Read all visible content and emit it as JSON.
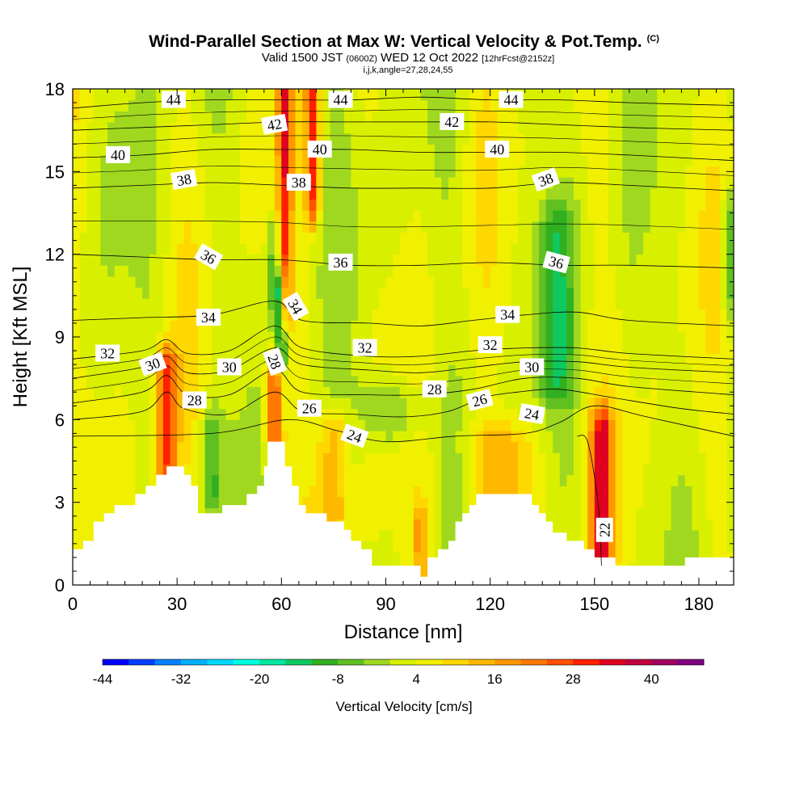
{
  "title": {
    "main": "Wind-Parallel Section at Max W: Vertical Velocity & Pot.Temp.",
    "copyright": "(C)",
    "valid_prefix": "Valid 1500 JST",
    "valid_utc": "(0600Z)",
    "valid_date": "WED 12 Oct 2022",
    "forecast": "[12hrFcst@2152z]",
    "indices": "i,j,k,angle=27,28,24,55"
  },
  "chart_data": {
    "type": "heatmap",
    "xlabel": "Distance [nm]",
    "ylabel": "Height [Kft MSL]",
    "xlim": [
      0,
      190
    ],
    "ylim": [
      0,
      18
    ],
    "x_ticks": [
      0,
      30,
      60,
      90,
      120,
      150,
      180
    ],
    "y_ticks": [
      0,
      3,
      6,
      9,
      12,
      15,
      18
    ],
    "colorbar": {
      "title": "Vertical Velocity [cm/s]",
      "tick_labels": [
        "-44",
        "-32",
        "-20",
        "-8",
        "4",
        "16",
        "28",
        "40"
      ],
      "tick_values": [
        -44,
        -32,
        -20,
        -8,
        4,
        16,
        28,
        40
      ],
      "range": [
        -44,
        48
      ],
      "colors": [
        "#0000ff",
        "#0040ff",
        "#0080ff",
        "#00b0ff",
        "#00d8ff",
        "#00ffe0",
        "#00e8a0",
        "#10c860",
        "#30b020",
        "#60c020",
        "#a0d820",
        "#d8f000",
        "#f0f000",
        "#ffd800",
        "#ffb800",
        "#ff9800",
        "#ff7800",
        "#ff5000",
        "#ff2000",
        "#e00020",
        "#c00040",
        "#a00060",
        "#800080"
      ]
    },
    "terrain": [
      [
        0,
        1.3
      ],
      [
        3,
        1.6
      ],
      [
        6,
        2.3
      ],
      [
        9,
        2.6
      ],
      [
        12,
        2.9
      ],
      [
        18,
        3.3
      ],
      [
        21,
        3.6
      ],
      [
        24,
        4.0
      ],
      [
        27,
        4.3
      ],
      [
        30,
        4.3
      ],
      [
        32,
        4.0
      ],
      [
        34,
        3.6
      ],
      [
        36,
        2.6
      ],
      [
        40,
        2.6
      ],
      [
        43,
        2.9
      ],
      [
        48,
        2.9
      ],
      [
        50,
        3.3
      ],
      [
        53,
        3.6
      ],
      [
        55,
        4.3
      ],
      [
        56,
        5.2
      ],
      [
        60,
        5.2
      ],
      [
        61,
        4.3
      ],
      [
        63,
        3.6
      ],
      [
        65,
        2.9
      ],
      [
        67,
        2.6
      ],
      [
        70,
        2.6
      ],
      [
        73,
        2.3
      ],
      [
        76,
        2.3
      ],
      [
        78,
        2.0
      ],
      [
        80,
        1.6
      ],
      [
        83,
        1.3
      ],
      [
        86,
        0.7
      ],
      [
        90,
        0.7
      ],
      [
        95,
        0.7
      ],
      [
        98,
        0.7
      ],
      [
        100,
        0.3
      ],
      [
        102,
        1.0
      ],
      [
        105,
        1.3
      ],
      [
        108,
        1.6
      ],
      [
        110,
        2.3
      ],
      [
        112,
        2.6
      ],
      [
        114,
        2.9
      ],
      [
        116,
        3.3
      ],
      [
        130,
        3.3
      ],
      [
        132,
        2.9
      ],
      [
        134,
        2.6
      ],
      [
        136,
        2.3
      ],
      [
        138,
        1.9
      ],
      [
        142,
        1.6
      ],
      [
        147,
        1.3
      ],
      [
        150,
        1.0
      ],
      [
        153,
        1.0
      ],
      [
        156,
        0.7
      ],
      [
        170,
        0.7
      ],
      [
        176,
        1.0
      ],
      [
        190,
        1.0
      ]
    ],
    "vertical_velocity_features": [
      {
        "x": 27,
        "ybot": 4.3,
        "ytop": 7.8,
        "w": 6,
        "value": 28
      },
      {
        "x": 58,
        "ybot": 5.2,
        "ytop": 7.5,
        "w": 5,
        "value": 28
      },
      {
        "x": 61,
        "ybot": 10.0,
        "ytop": 18,
        "w": 4,
        "value": 28
      },
      {
        "x": 69,
        "ybot": 14,
        "ytop": 18,
        "w": 4,
        "value": 28
      },
      {
        "x": 152,
        "ybot": 1.2,
        "ytop": 5.5,
        "w": 6,
        "value": 32
      },
      {
        "x": 123,
        "ybot": 3.3,
        "ytop": 5.0,
        "w": 18,
        "value": 16
      },
      {
        "x": 75,
        "ybot": 2.6,
        "ytop": 5.5,
        "w": 8,
        "value": 16
      },
      {
        "x": 100,
        "ybot": 0.5,
        "ytop": 2.0,
        "w": 4,
        "value": 16
      },
      {
        "x": 60,
        "ybot": 8.8,
        "ytop": 10.5,
        "w": 3,
        "value": -22
      },
      {
        "x": 58,
        "ybot": 10.5,
        "ytop": 12.5,
        "w": 3,
        "value": -10
      },
      {
        "x": 139,
        "ybot": 7.5,
        "ytop": 13,
        "w": 10,
        "value": -8
      },
      {
        "x": 190,
        "ybot": 10.5,
        "ytop": 13.5,
        "w": 6,
        "value": -8
      },
      {
        "x": 40,
        "ybot": 3.5,
        "ytop": 5.5,
        "w": 5,
        "value": -8
      },
      {
        "x": 92,
        "ybot": 6.0,
        "ytop": 6.6,
        "w": 20,
        "value": -6
      }
    ],
    "theta_contours": [
      {
        "value": 22,
        "label": "22",
        "label_x": 153,
        "label_y": 2.0,
        "label_rot": -90,
        "pts": [
          [
            152,
            0.7
          ],
          [
            151,
            3.0
          ],
          [
            148,
            5.2
          ],
          [
            145,
            5.4
          ]
        ]
      },
      {
        "value": 24,
        "label": "24",
        "label_x": 81,
        "label_y": 5.4,
        "label_rot": 20,
        "pts": [
          [
            0,
            5.4
          ],
          [
            40,
            5.5
          ],
          [
            62,
            6.0
          ],
          [
            76,
            5.6
          ],
          [
            90,
            5.2
          ],
          [
            110,
            5.4
          ],
          [
            130,
            5.5
          ],
          [
            140,
            5.9
          ],
          [
            150,
            6.5
          ],
          [
            165,
            6.1
          ],
          [
            190,
            5.4
          ]
        ]
      },
      {
        "value": 24,
        "label": "24",
        "label_x": 132,
        "label_y": 6.2,
        "label_rot": 10,
        "pts": []
      },
      {
        "value": 26,
        "label": "26",
        "label_x": 68,
        "label_y": 6.4,
        "label_rot": 0,
        "pts": [
          [
            0,
            6.0
          ],
          [
            20,
            6.3
          ],
          [
            27,
            7.0
          ],
          [
            32,
            6.4
          ],
          [
            45,
            6.2
          ],
          [
            58,
            7.0
          ],
          [
            66,
            6.3
          ],
          [
            80,
            6.2
          ],
          [
            95,
            6.1
          ],
          [
            108,
            6.3
          ],
          [
            118,
            6.8
          ],
          [
            128,
            7.0
          ],
          [
            140,
            7.1
          ],
          [
            155,
            6.8
          ],
          [
            175,
            6.4
          ],
          [
            190,
            6.2
          ]
        ]
      },
      {
        "value": 26,
        "label": "26",
        "label_x": 117,
        "label_y": 6.7,
        "label_rot": -15,
        "pts": []
      },
      {
        "value": 28,
        "label": "28",
        "label_x": 35,
        "label_y": 6.7,
        "label_rot": 0,
        "pts": [
          [
            0,
            6.6
          ],
          [
            20,
            7.0
          ],
          [
            27,
            7.6
          ],
          [
            33,
            6.9
          ],
          [
            45,
            6.9
          ],
          [
            58,
            7.8
          ],
          [
            66,
            7.0
          ],
          [
            85,
            6.9
          ],
          [
            100,
            6.9
          ],
          [
            115,
            7.1
          ],
          [
            130,
            7.5
          ],
          [
            145,
            7.5
          ],
          [
            160,
            7.2
          ],
          [
            190,
            6.9
          ]
        ]
      },
      {
        "value": 28,
        "label": "28",
        "label_x": 104,
        "label_y": 7.1,
        "label_rot": 0,
        "pts": []
      },
      {
        "value": 28,
        "label": "28",
        "label_x": 58,
        "label_y": 8.1,
        "label_rot": 70,
        "pts": []
      },
      {
        "value": 30,
        "label": "30",
        "label_x": 23,
        "label_y": 8.0,
        "label_rot": -20,
        "pts": [
          [
            0,
            7.5
          ],
          [
            20,
            7.9
          ],
          [
            27,
            8.3
          ],
          [
            33,
            7.7
          ],
          [
            45,
            7.8
          ],
          [
            58,
            8.6
          ],
          [
            66,
            8.0
          ],
          [
            85,
            7.8
          ],
          [
            100,
            7.7
          ],
          [
            115,
            7.9
          ],
          [
            130,
            8.1
          ],
          [
            145,
            8.1
          ],
          [
            160,
            7.9
          ],
          [
            190,
            7.7
          ]
        ]
      },
      {
        "value": 30,
        "label": "30",
        "label_x": 45,
        "label_y": 7.9,
        "label_rot": 0,
        "pts": []
      },
      {
        "value": 30,
        "label": "30",
        "label_x": 132,
        "label_y": 7.9,
        "label_rot": 0,
        "pts": []
      },
      {
        "value": 32,
        "label": "32",
        "label_x": 10,
        "label_y": 8.4,
        "label_rot": 0,
        "pts": [
          [
            0,
            8.2
          ],
          [
            20,
            8.5
          ],
          [
            27,
            8.9
          ],
          [
            33,
            8.4
          ],
          [
            45,
            8.5
          ],
          [
            58,
            9.4
          ],
          [
            66,
            8.6
          ],
          [
            85,
            8.3
          ],
          [
            100,
            8.3
          ],
          [
            115,
            8.5
          ],
          [
            130,
            8.6
          ],
          [
            145,
            8.6
          ],
          [
            160,
            8.4
          ],
          [
            190,
            8.2
          ]
        ]
      },
      {
        "value": 32,
        "label": "32",
        "label_x": 84,
        "label_y": 8.6,
        "label_rot": 0,
        "pts": []
      },
      {
        "value": 32,
        "label": "32",
        "label_x": 120,
        "label_y": 8.7,
        "label_rot": 0,
        "pts": []
      },
      {
        "value": 34,
        "label": "34",
        "label_x": 39,
        "label_y": 9.7,
        "label_rot": 0,
        "pts": [
          [
            0,
            9.6
          ],
          [
            20,
            9.7
          ],
          [
            40,
            9.8
          ],
          [
            58,
            10.3
          ],
          [
            66,
            9.6
          ],
          [
            85,
            9.5
          ],
          [
            100,
            9.4
          ],
          [
            115,
            9.6
          ],
          [
            130,
            9.8
          ],
          [
            145,
            9.9
          ],
          [
            160,
            9.6
          ],
          [
            190,
            9.4
          ]
        ]
      },
      {
        "value": 34,
        "label": "34",
        "label_x": 64,
        "label_y": 10.1,
        "label_rot": 60,
        "pts": []
      },
      {
        "value": 34,
        "label": "34",
        "label_x": 125,
        "label_y": 9.8,
        "label_rot": 0,
        "pts": []
      },
      {
        "value": 36,
        "label": "36",
        "label_x": 39,
        "label_y": 11.9,
        "label_rot": 30,
        "pts": [
          [
            0,
            12.0
          ],
          [
            20,
            11.9
          ],
          [
            40,
            11.8
          ],
          [
            60,
            11.8
          ],
          [
            80,
            11.6
          ],
          [
            100,
            11.6
          ],
          [
            120,
            11.7
          ],
          [
            140,
            11.6
          ],
          [
            160,
            11.6
          ],
          [
            190,
            11.5
          ]
        ]
      },
      {
        "value": 36,
        "label": "36",
        "label_x": 77,
        "label_y": 11.7,
        "label_rot": 0,
        "pts": []
      },
      {
        "value": 36,
        "label": "36",
        "label_x": 139,
        "label_y": 11.7,
        "label_rot": 15,
        "pts": []
      },
      {
        "value": 38,
        "label": "38",
        "label_x": 32,
        "label_y": 14.7,
        "label_rot": -10,
        "pts": [
          [
            0,
            14.4
          ],
          [
            20,
            14.5
          ],
          [
            40,
            14.6
          ],
          [
            60,
            14.5
          ],
          [
            80,
            14.4
          ],
          [
            100,
            14.4
          ],
          [
            120,
            14.4
          ],
          [
            140,
            14.6
          ],
          [
            160,
            14.5
          ],
          [
            190,
            14.3
          ]
        ]
      },
      {
        "value": 38,
        "label": "38",
        "label_x": 65,
        "label_y": 14.6,
        "label_rot": 0,
        "pts": []
      },
      {
        "value": 38,
        "label": "38",
        "label_x": 136,
        "label_y": 14.7,
        "label_rot": -20,
        "pts": []
      },
      {
        "value": 40,
        "label": "40",
        "label_x": 13,
        "label_y": 15.6,
        "label_rot": 0,
        "pts": [
          [
            0,
            15.5
          ],
          [
            20,
            15.6
          ],
          [
            40,
            15.8
          ],
          [
            60,
            15.8
          ],
          [
            80,
            15.8
          ],
          [
            100,
            15.7
          ],
          [
            120,
            15.7
          ],
          [
            140,
            15.7
          ],
          [
            160,
            15.6
          ],
          [
            190,
            15.4
          ]
        ]
      },
      {
        "value": 40,
        "label": "40",
        "label_x": 71,
        "label_y": 15.8,
        "label_rot": 0,
        "pts": []
      },
      {
        "value": 40,
        "label": "40",
        "label_x": 122,
        "label_y": 15.8,
        "label_rot": 0,
        "pts": []
      },
      {
        "value": 42,
        "label": "42",
        "label_x": 58,
        "label_y": 16.7,
        "label_rot": -10,
        "pts": [
          [
            0,
            16.5
          ],
          [
            20,
            16.6
          ],
          [
            40,
            16.7
          ],
          [
            60,
            16.8
          ],
          [
            80,
            16.8
          ],
          [
            100,
            16.8
          ],
          [
            120,
            16.8
          ],
          [
            140,
            16.7
          ],
          [
            160,
            16.6
          ],
          [
            190,
            16.5
          ]
        ]
      },
      {
        "value": 42,
        "label": "42",
        "label_x": 109,
        "label_y": 16.8,
        "label_rot": 0,
        "pts": []
      },
      {
        "value": 44,
        "label": "44",
        "label_x": 29,
        "label_y": 17.6,
        "label_rot": 0,
        "pts": [
          [
            0,
            17.3
          ],
          [
            20,
            17.5
          ],
          [
            40,
            17.6
          ],
          [
            60,
            17.6
          ],
          [
            80,
            17.6
          ],
          [
            100,
            17.7
          ],
          [
            120,
            17.6
          ],
          [
            140,
            17.6
          ],
          [
            160,
            17.5
          ],
          [
            190,
            17.4
          ]
        ]
      },
      {
        "value": 44,
        "label": "44",
        "label_x": 77,
        "label_y": 17.6,
        "label_rot": 0,
        "pts": []
      },
      {
        "value": 44,
        "label": "44",
        "label_x": 126,
        "label_y": 17.6,
        "label_rot": 0,
        "pts": []
      }
    ]
  }
}
